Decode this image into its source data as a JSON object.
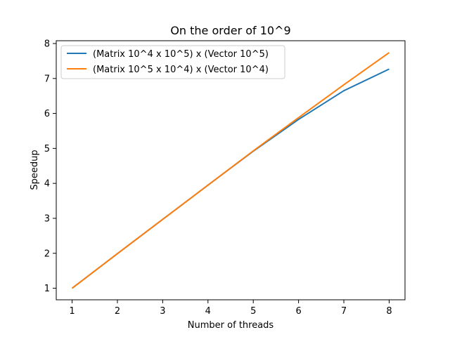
{
  "chart_data": {
    "type": "line",
    "title": "On the order of 10^9",
    "xlabel": "Number of threads",
    "ylabel": "Speedup",
    "x": [
      1,
      2,
      3,
      4,
      5,
      6,
      7,
      8
    ],
    "xlim": [
      0.65,
      8.35
    ],
    "ylim": [
      0.67,
      8.08
    ],
    "xticks": [
      1,
      2,
      3,
      4,
      5,
      6,
      7,
      8
    ],
    "yticks": [
      1,
      2,
      3,
      4,
      5,
      6,
      7,
      8
    ],
    "grid": false,
    "legend": "top-left",
    "series": [
      {
        "name": "(Matrix 10^4 x 10^5) x (Vector 10^5)",
        "color": "#1f77b4",
        "values": [
          1.0,
          1.99,
          2.97,
          3.95,
          4.92,
          5.83,
          6.65,
          7.27
        ]
      },
      {
        "name": "(Matrix 10^5 x 10^4) x (Vector 10^4)",
        "color": "#ff7f0e",
        "values": [
          1.0,
          1.99,
          2.97,
          3.95,
          4.93,
          5.88,
          6.82,
          7.74
        ]
      }
    ]
  }
}
